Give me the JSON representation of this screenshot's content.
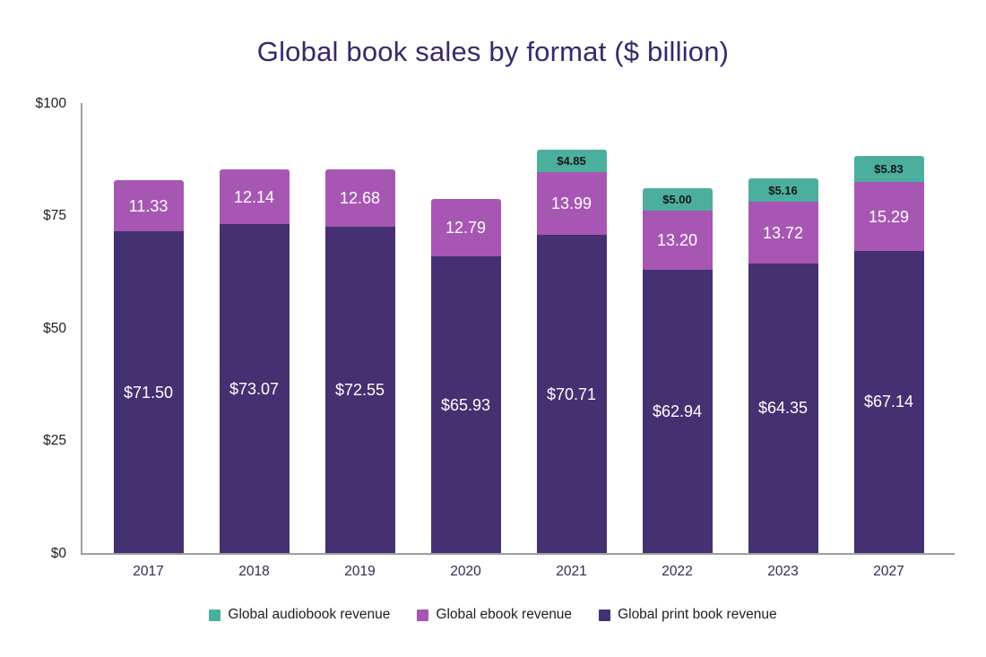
{
  "chart_data": {
    "type": "bar",
    "stacked": true,
    "title": "Global book sales by format ($ billion)",
    "title_color": "#38286B",
    "axis_color": "#9E9E9E",
    "grid": false,
    "categories": [
      "2017",
      "2018",
      "2019",
      "2020",
      "2021",
      "2022",
      "2023",
      "2027"
    ],
    "series": [
      {
        "name": "Global print book revenue",
        "slug": "print",
        "color": "#453071",
        "values": [
          71.5,
          73.07,
          72.55,
          65.93,
          70.71,
          62.94,
          64.35,
          67.14
        ],
        "labels": [
          "$71.50",
          "$73.07",
          "$72.55",
          "$65.93",
          "$70.71",
          "$62.94",
          "$64.35",
          "$67.14"
        ]
      },
      {
        "name": "Global ebook revenue",
        "slug": "ebook",
        "color": "#A757B3",
        "values": [
          11.33,
          12.14,
          12.68,
          12.79,
          13.99,
          13.2,
          13.72,
          15.29
        ],
        "labels": [
          "11.33",
          "12.14",
          "12.68",
          "12.79",
          "13.99",
          "13.20",
          "13.72",
          "15.29"
        ]
      },
      {
        "name": "Global audiobook revenue",
        "slug": "audiobook",
        "color": "#4CAF9E",
        "values": [
          0,
          0,
          0,
          0,
          4.85,
          5.0,
          5.16,
          5.83
        ],
        "labels": [
          "",
          "",
          "",
          "",
          "$4.85",
          "$5.00",
          "$5.16",
          "$5.83"
        ]
      }
    ],
    "ylim": [
      0,
      100
    ],
    "yticks": [
      {
        "value": 0,
        "label": "$0"
      },
      {
        "value": 25,
        "label": "$25"
      },
      {
        "value": 50,
        "label": "$50"
      },
      {
        "value": 75,
        "label": "$75"
      },
      {
        "value": 100,
        "label": "$100"
      }
    ],
    "xlabel": "",
    "ylabel": "",
    "legend_position": "bottom",
    "legend": [
      {
        "label": "Global audiobook revenue",
        "slug": "audiobook",
        "color": "#4CAF9E"
      },
      {
        "label": "Global ebook revenue",
        "slug": "ebook",
        "color": "#A757B3"
      },
      {
        "label": "Global print book revenue",
        "slug": "print",
        "color": "#453071"
      }
    ]
  }
}
